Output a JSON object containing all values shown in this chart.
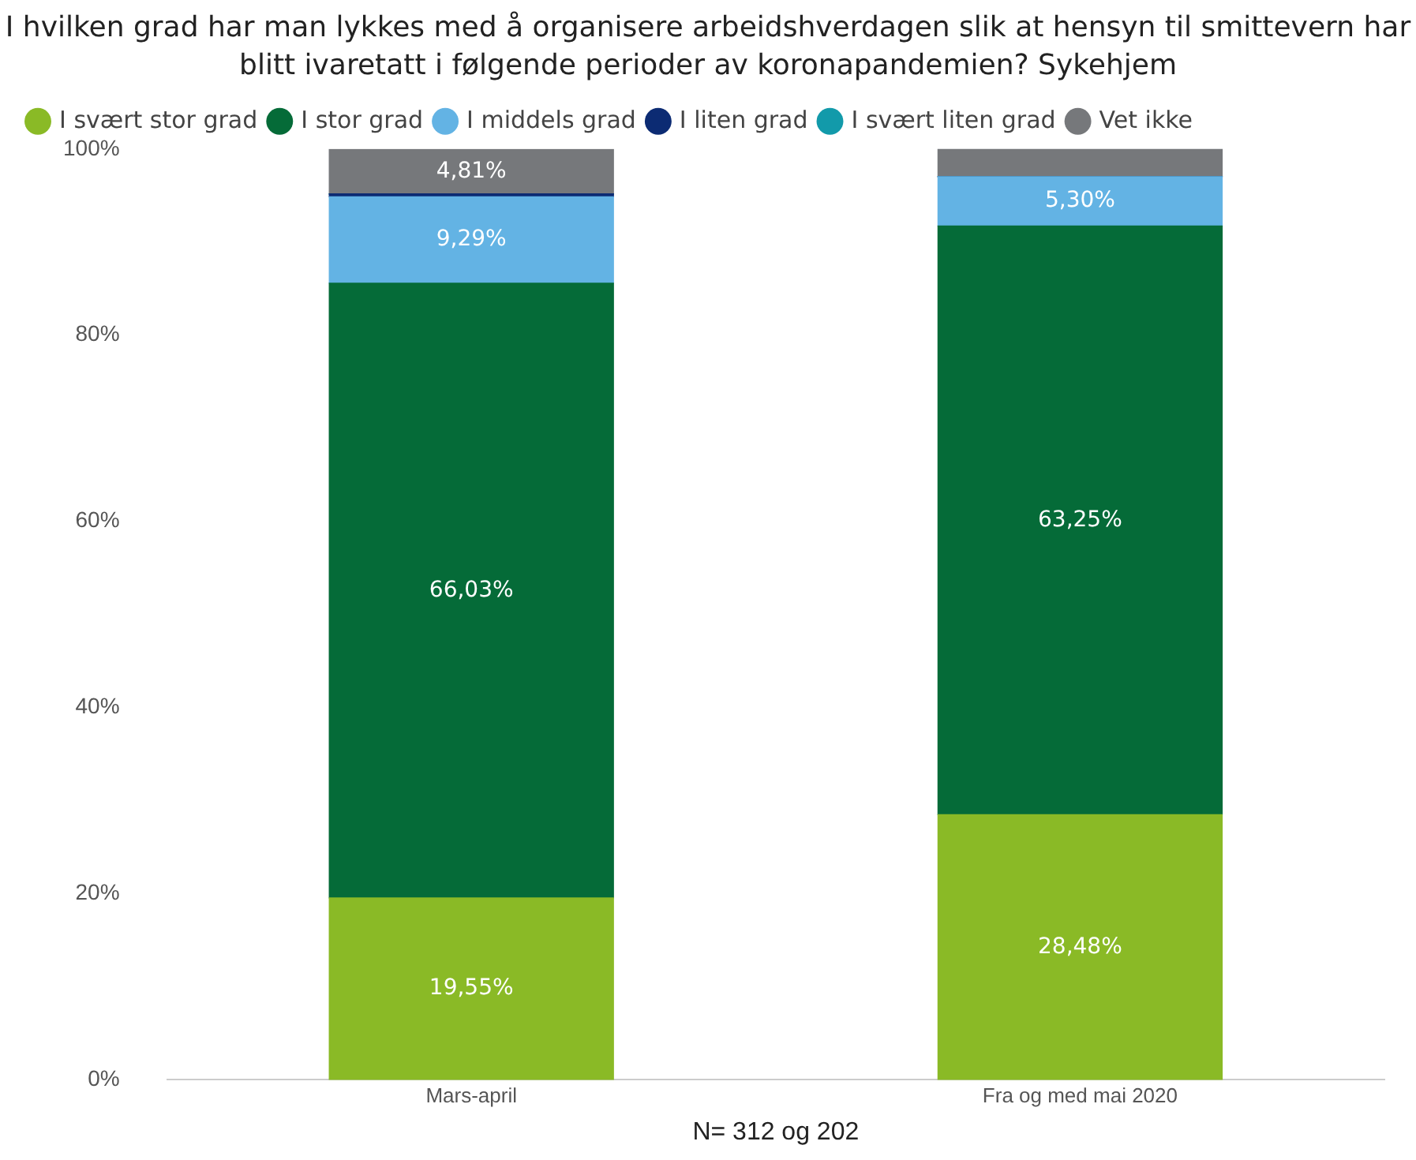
{
  "chart_data": {
    "type": "bar",
    "stacked": true,
    "title": "I hvilken grad har man lykkes med å organisere arbeidshverdagen slik at hensyn til smittevern har blitt ivaretatt i følgende perioder av koronapandemien? Sykehjem",
    "xlabel": "N= 312 og 202",
    "categories": [
      "Mars-april",
      "Fra og med mai 2020"
    ],
    "series": [
      {
        "name": "I svært stor grad",
        "color": "#8aba26",
        "values": [
          19.55,
          28.48
        ],
        "value_labels": [
          "19,55%",
          "28,48%"
        ]
      },
      {
        "name": "I stor grad",
        "color": "#056b38",
        "values": [
          66.03,
          63.25
        ],
        "value_labels": [
          "66,03%",
          "63,25%"
        ]
      },
      {
        "name": "I middels grad",
        "color": "#63b3e4",
        "values": [
          9.29,
          5.3
        ],
        "value_labels": [
          "9,29%",
          "5,30%"
        ]
      },
      {
        "name": "I liten grad",
        "color": "#0c2b73",
        "values": [
          0.3,
          0
        ],
        "value_labels": [
          null,
          null
        ]
      },
      {
        "name": "I svært liten grad",
        "color": "#129aaa",
        "values": [
          0,
          0
        ],
        "value_labels": [
          null,
          null
        ]
      },
      {
        "name": "Vet ikke",
        "color": "#76787b",
        "values": [
          4.81,
          3
        ],
        "value_labels": [
          "4,81%",
          null
        ]
      }
    ],
    "ylim": [
      0,
      100
    ],
    "yticks": [
      {
        "value": 0,
        "label": "0%"
      },
      {
        "value": 20,
        "label": "20%"
      },
      {
        "value": 40,
        "label": "40%"
      },
      {
        "value": 60,
        "label": "60%"
      },
      {
        "value": 80,
        "label": "80%"
      },
      {
        "value": 100,
        "label": "100%"
      }
    ],
    "grid": false,
    "legend": "top left"
  }
}
